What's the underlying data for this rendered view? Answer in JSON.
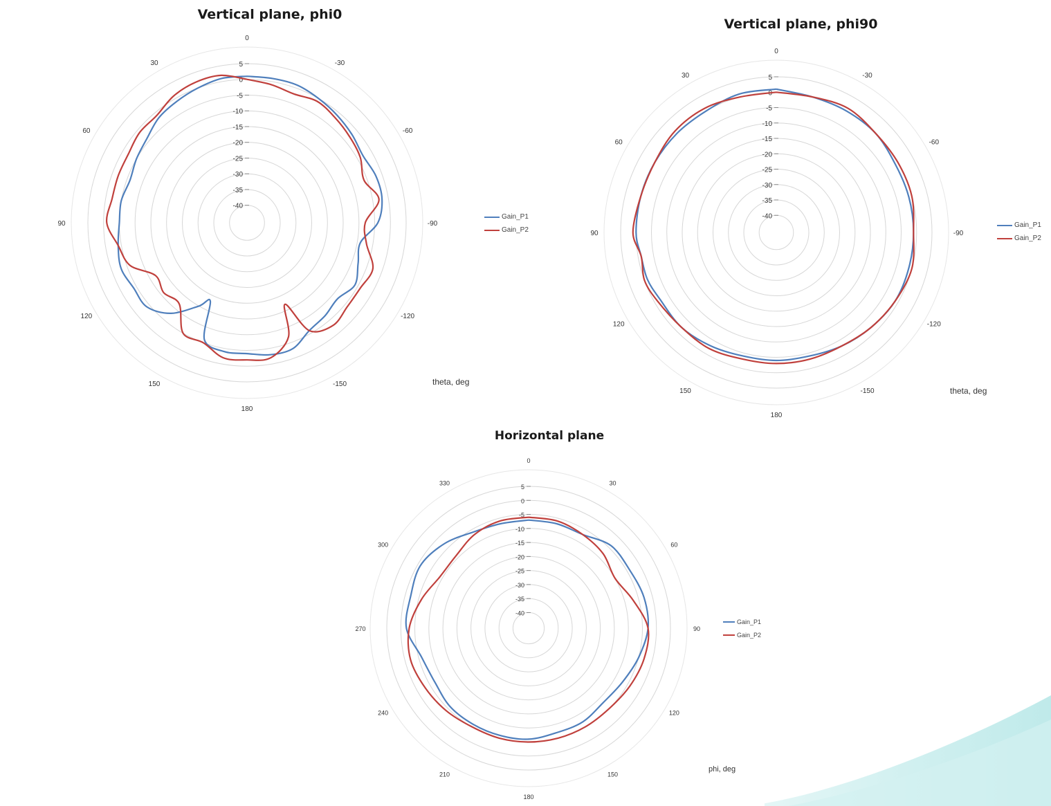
{
  "colors": {
    "gain_p1": "#4f7fbc",
    "gain_p2": "#c0403c",
    "grid": "#d6d6d6",
    "accent_wave": "#bfeaea"
  },
  "chart_data": [
    {
      "type": "polar-line",
      "title": "Vertical plane, phi0",
      "angle_label": "theta, deg",
      "angle_ticks": [
        180,
        -150,
        -120,
        -90,
        -60,
        -30,
        0,
        30,
        60,
        90,
        120,
        150
      ],
      "radial_ticks": [
        5,
        0,
        -5,
        -10,
        -15,
        -20,
        -25,
        -30,
        -35,
        -40
      ],
      "rlim": [
        -40,
        5
      ],
      "legend": [
        "Gain_P1",
        "Gain_P2"
      ],
      "legend_position": "right",
      "series": [
        {
          "name": "Gain_P1",
          "points": [
            [
              0,
              1
            ],
            [
              10,
              1
            ],
            [
              20,
              0
            ],
            [
              30,
              -1
            ],
            [
              40,
              -2
            ],
            [
              50,
              -4
            ],
            [
              60,
              -5
            ],
            [
              70,
              -6
            ],
            [
              80,
              -5
            ],
            [
              90,
              -5
            ],
            [
              100,
              -4
            ],
            [
              110,
              -3
            ],
            [
              120,
              -4
            ],
            [
              130,
              -4
            ],
            [
              140,
              -8
            ],
            [
              150,
              -15
            ],
            [
              155,
              -18
            ],
            [
              160,
              -6
            ],
            [
              170,
              -4
            ],
            [
              180,
              -4
            ],
            [
              190,
              -3
            ],
            [
              200,
              -3
            ],
            [
              210,
              -6
            ],
            [
              220,
              -7
            ],
            [
              230,
              -8
            ],
            [
              240,
              -6
            ],
            [
              250,
              -8
            ],
            [
              260,
              -9
            ],
            [
              270,
              -4
            ],
            [
              280,
              -2
            ],
            [
              290,
              -2
            ],
            [
              300,
              -3
            ],
            [
              310,
              -2
            ],
            [
              320,
              -1
            ],
            [
              330,
              0
            ],
            [
              340,
              1
            ],
            [
              350,
              1
            ],
            [
              360,
              1
            ]
          ]
        },
        {
          "name": "Gain_P2",
          "points": [
            [
              0,
              0
            ],
            [
              10,
              2
            ],
            [
              20,
              2
            ],
            [
              30,
              1
            ],
            [
              40,
              -1
            ],
            [
              50,
              -1
            ],
            [
              60,
              -2
            ],
            [
              70,
              -2
            ],
            [
              80,
              -2
            ],
            [
              90,
              -1
            ],
            [
              100,
              -4
            ],
            [
              110,
              -6
            ],
            [
              120,
              -12
            ],
            [
              130,
              -11
            ],
            [
              140,
              -12
            ],
            [
              150,
              -5
            ],
            [
              160,
              -5
            ],
            [
              170,
              -2
            ],
            [
              180,
              -2
            ],
            [
              190,
              -2
            ],
            [
              200,
              -7
            ],
            [
              205,
              -17
            ],
            [
              210,
              -6
            ],
            [
              220,
              -3
            ],
            [
              230,
              -4
            ],
            [
              240,
              -4
            ],
            [
              250,
              -3
            ],
            [
              260,
              -7
            ],
            [
              270,
              -8
            ],
            [
              280,
              -3
            ],
            [
              290,
              -6
            ],
            [
              300,
              -4
            ],
            [
              310,
              -3
            ],
            [
              320,
              -2
            ],
            [
              330,
              -1
            ],
            [
              340,
              -2
            ],
            [
              350,
              -1
            ],
            [
              360,
              0
            ]
          ]
        }
      ]
    },
    {
      "type": "polar-line",
      "title": "Vertical plane, phi90",
      "angle_label": "theta, deg",
      "angle_ticks": [
        180,
        -150,
        -120,
        -90,
        -60,
        -30,
        0,
        30,
        60,
        90,
        120,
        150
      ],
      "radial_ticks": [
        5,
        0,
        -5,
        -10,
        -15,
        -20,
        -25,
        -30,
        -35,
        -40
      ],
      "rlim": [
        -40,
        5
      ],
      "legend": [
        "Gain_P1",
        "Gain_P2"
      ],
      "legend_position": "right",
      "series": [
        {
          "name": "Gain_P1",
          "points": [
            [
              0,
              1
            ],
            [
              15,
              1
            ],
            [
              30,
              0
            ],
            [
              45,
              0
            ],
            [
              60,
              0
            ],
            [
              75,
              0
            ],
            [
              90,
              0
            ],
            [
              100,
              -1
            ],
            [
              110,
              -1
            ],
            [
              120,
              -2
            ],
            [
              135,
              -2
            ],
            [
              150,
              -3
            ],
            [
              165,
              -4
            ],
            [
              180,
              -4
            ],
            [
              195,
              -4
            ],
            [
              210,
              -3
            ],
            [
              225,
              -2
            ],
            [
              240,
              -1
            ],
            [
              255,
              -1
            ],
            [
              270,
              -1
            ],
            [
              285,
              -1
            ],
            [
              300,
              -1
            ],
            [
              315,
              0
            ],
            [
              330,
              0
            ],
            [
              345,
              0
            ],
            [
              360,
              1
            ]
          ]
        },
        {
          "name": "Gain_P2",
          "points": [
            [
              0,
              0
            ],
            [
              15,
              0
            ],
            [
              30,
              1
            ],
            [
              45,
              1
            ],
            [
              60,
              0
            ],
            [
              75,
              0
            ],
            [
              90,
              1
            ],
            [
              100,
              -1
            ],
            [
              110,
              0
            ],
            [
              120,
              -1
            ],
            [
              135,
              -2
            ],
            [
              150,
              -2
            ],
            [
              165,
              -3
            ],
            [
              180,
              -3
            ],
            [
              195,
              -3
            ],
            [
              210,
              -3
            ],
            [
              225,
              -2
            ],
            [
              240,
              -1
            ],
            [
              255,
              0
            ],
            [
              270,
              -1
            ],
            [
              285,
              0
            ],
            [
              300,
              0
            ],
            [
              315,
              0
            ],
            [
              330,
              1
            ],
            [
              345,
              0
            ],
            [
              360,
              0
            ]
          ]
        }
      ]
    },
    {
      "type": "polar-line",
      "title": "Horizontal plane",
      "angle_label": "phi, deg",
      "angle_ticks": [
        0,
        30,
        60,
        90,
        120,
        150,
        180,
        210,
        240,
        270,
        300,
        330
      ],
      "radial_ticks": [
        5,
        0,
        -5,
        -10,
        -15,
        -20,
        -25,
        -30,
        -35,
        -40
      ],
      "rlim": [
        -40,
        5
      ],
      "legend": [
        "Gain_P1",
        "Gain_P2"
      ],
      "legend_position": "right",
      "series": [
        {
          "name": "Gain_P1",
          "points": [
            [
              0,
              -7
            ],
            [
              15,
              -7
            ],
            [
              30,
              -7
            ],
            [
              45,
              -4
            ],
            [
              60,
              -4
            ],
            [
              75,
              -3
            ],
            [
              90,
              -3
            ],
            [
              105,
              -5
            ],
            [
              120,
              -7
            ],
            [
              135,
              -8
            ],
            [
              150,
              -7
            ],
            [
              165,
              -7
            ],
            [
              180,
              -6
            ],
            [
              195,
              -6
            ],
            [
              210,
              -6
            ],
            [
              225,
              -6
            ],
            [
              240,
              -7
            ],
            [
              255,
              -6
            ],
            [
              270,
              -2
            ],
            [
              285,
              -2
            ],
            [
              300,
              -1
            ],
            [
              315,
              -3
            ],
            [
              330,
              -6
            ],
            [
              345,
              -7
            ],
            [
              360,
              -7
            ]
          ]
        },
        {
          "name": "Gain_P2",
          "points": [
            [
              0,
              -6
            ],
            [
              15,
              -6
            ],
            [
              30,
              -7
            ],
            [
              45,
              -8
            ],
            [
              60,
              -10
            ],
            [
              75,
              -7
            ],
            [
              90,
              -3
            ],
            [
              105,
              -3
            ],
            [
              120,
              -4
            ],
            [
              135,
              -5
            ],
            [
              150,
              -5
            ],
            [
              165,
              -5
            ],
            [
              180,
              -5
            ],
            [
              195,
              -5
            ],
            [
              210,
              -5
            ],
            [
              225,
              -4
            ],
            [
              240,
              -3
            ],
            [
              255,
              -2
            ],
            [
              270,
              -3
            ],
            [
              285,
              -6
            ],
            [
              300,
              -9
            ],
            [
              315,
              -9
            ],
            [
              330,
              -7
            ],
            [
              345,
              -6
            ],
            [
              360,
              -6
            ]
          ]
        }
      ]
    }
  ]
}
